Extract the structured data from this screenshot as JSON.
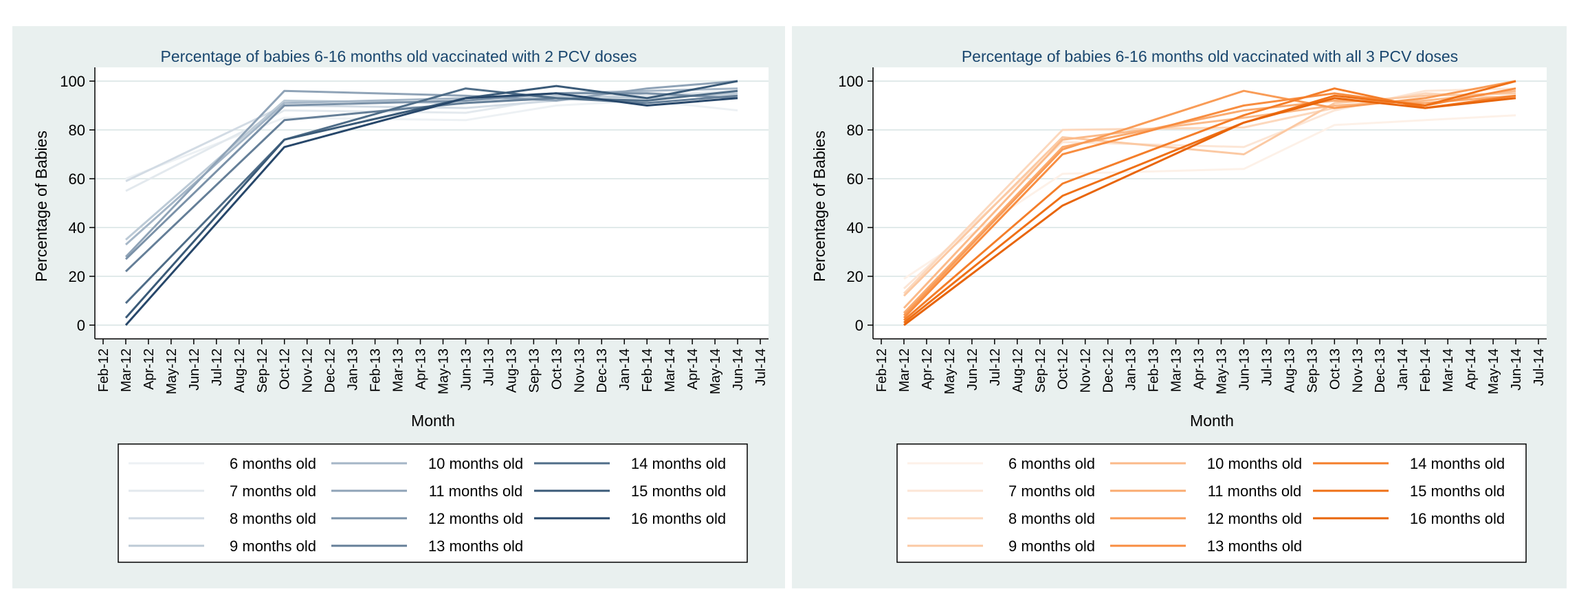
{
  "colors": {
    "panel_bg": "#e9f0ef",
    "plot_bg": "#ffffff",
    "grid": "#e1eaea",
    "text": "#000000",
    "title_text": "#1a476f",
    "legend_border": "#000000"
  },
  "chart_data": [
    {
      "type": "line",
      "title": "Percentage of babies 6-16 months old vaccinated with 2 PCV doses",
      "xlabel": "Month",
      "ylabel": "Percentage of Babies",
      "ylim": [
        0,
        100
      ],
      "yticks": [
        0,
        20,
        40,
        60,
        80,
        100
      ],
      "categories": [
        "Feb-12",
        "Mar-12",
        "Apr-12",
        "May-12",
        "Jun-12",
        "Jul-12",
        "Aug-12",
        "Sep-12",
        "Oct-12",
        "Nov-12",
        "Dec-12",
        "Jan-13",
        "Feb-13",
        "Mar-13",
        "Apr-13",
        "May-13",
        "Jun-13",
        "Jul-13",
        "Aug-13",
        "Sep-13",
        "Oct-13",
        "Nov-13",
        "Dec-13",
        "Jan-14",
        "Feb-14",
        "Mar-14",
        "Apr-14",
        "May-14",
        "Jun-14",
        "Jul-14"
      ],
      "grid": true,
      "legend_position": "bottom",
      "legend_columns": 3,
      "series": [
        {
          "name": "6 months old",
          "color": "#edf1f4",
          "x": [
            "Mar-12",
            "Oct-12",
            "Jun-13",
            "Oct-13",
            "Feb-14",
            "Jun-14"
          ],
          "values": [
            60,
            85,
            84,
            90,
            92,
            88
          ]
        },
        {
          "name": "7 months old",
          "color": "#e3e9ee",
          "x": [
            "Mar-12",
            "Oct-12",
            "Jun-13",
            "Oct-13",
            "Feb-14",
            "Jun-14"
          ],
          "values": [
            55,
            88,
            87,
            93,
            94,
            96
          ]
        },
        {
          "name": "8 months old",
          "color": "#d2dbe4",
          "x": [
            "Mar-12",
            "Oct-12",
            "Jun-13",
            "Oct-13",
            "Feb-14",
            "Jun-14"
          ],
          "values": [
            59,
            90,
            89,
            92,
            95,
            94
          ]
        },
        {
          "name": "9 months old",
          "color": "#bccad6",
          "x": [
            "Mar-12",
            "Oct-12",
            "Jun-13",
            "Oct-13",
            "Feb-14",
            "Jun-14"
          ],
          "values": [
            35,
            92,
            91,
            94,
            93,
            95
          ]
        },
        {
          "name": "10 months old",
          "color": "#a5b6c7",
          "x": [
            "Mar-12",
            "Oct-12",
            "Jun-13",
            "Oct-13",
            "Feb-14",
            "Jun-14"
          ],
          "values": [
            33,
            91,
            93,
            95,
            96,
            97
          ]
        },
        {
          "name": "11 months old",
          "color": "#8fa3b7",
          "x": [
            "Mar-12",
            "Oct-12",
            "Jun-13",
            "Oct-13",
            "Feb-14",
            "Jun-14"
          ],
          "values": [
            28,
            96,
            94,
            92,
            97,
            100
          ]
        },
        {
          "name": "12 months old",
          "color": "#7a91a8",
          "x": [
            "Mar-12",
            "Oct-12",
            "Jun-13",
            "Oct-13",
            "Feb-14",
            "Jun-14"
          ],
          "values": [
            27,
            90,
            92,
            95,
            95,
            93
          ]
        },
        {
          "name": "13 months old",
          "color": "#657f98",
          "x": [
            "Mar-12",
            "Oct-12",
            "Jun-13",
            "Oct-13",
            "Feb-14",
            "Jun-14"
          ],
          "values": [
            22,
            84,
            91,
            93,
            91,
            94
          ]
        },
        {
          "name": "14 months old",
          "color": "#4f6d88",
          "x": [
            "Mar-12",
            "Oct-12",
            "Jun-13",
            "Oct-13",
            "Feb-14",
            "Jun-14"
          ],
          "values": [
            9,
            76,
            97,
            93,
            92,
            96
          ]
        },
        {
          "name": "15 months old",
          "color": "#3a5a78",
          "x": [
            "Mar-12",
            "Oct-12",
            "Jun-13",
            "Oct-13",
            "Feb-14",
            "Jun-14"
          ],
          "values": [
            3,
            76,
            93,
            98,
            93,
            100
          ]
        },
        {
          "name": "16 months old",
          "color": "#27476a",
          "x": [
            "Mar-12",
            "Oct-12",
            "Jun-13",
            "Oct-13",
            "Feb-14",
            "Jun-14"
          ],
          "values": [
            0,
            73,
            93,
            95,
            90,
            93
          ]
        }
      ]
    },
    {
      "type": "line",
      "title": "Percentage of babies 6-16 months old vaccinated with all 3 PCV doses",
      "xlabel": "Month",
      "ylabel": "Percentage of Babies",
      "ylim": [
        0,
        100
      ],
      "yticks": [
        0,
        20,
        40,
        60,
        80,
        100
      ],
      "categories": [
        "Feb-12",
        "Mar-12",
        "Apr-12",
        "May-12",
        "Jun-12",
        "Jul-12",
        "Aug-12",
        "Sep-12",
        "Oct-12",
        "Nov-12",
        "Dec-12",
        "Jan-13",
        "Feb-13",
        "Mar-13",
        "Apr-13",
        "May-13",
        "Jun-13",
        "Jul-13",
        "Aug-13",
        "Sep-13",
        "Oct-13",
        "Nov-13",
        "Dec-13",
        "Jan-14",
        "Feb-14",
        "Mar-14",
        "Apr-14",
        "May-14",
        "Jun-14",
        "Jul-14"
      ],
      "grid": true,
      "legend_position": "bottom",
      "legend_columns": 3,
      "series": [
        {
          "name": "6 months old",
          "color": "#fdf1e8",
          "x": [
            "Mar-12",
            "Oct-12",
            "Jun-13",
            "Oct-13",
            "Feb-14",
            "Jun-14"
          ],
          "values": [
            19,
            62,
            64,
            82,
            84,
            86
          ]
        },
        {
          "name": "7 months old",
          "color": "#fce6d6",
          "x": [
            "Mar-12",
            "Oct-12",
            "Jun-13",
            "Oct-13",
            "Feb-14",
            "Jun-14"
          ],
          "values": [
            15,
            75,
            73,
            88,
            96,
            97
          ]
        },
        {
          "name": "8 months old",
          "color": "#fcd8bd",
          "x": [
            "Mar-12",
            "Oct-12",
            "Jun-13",
            "Oct-13",
            "Feb-14",
            "Jun-14"
          ],
          "values": [
            13,
            80,
            81,
            89,
            95,
            93
          ]
        },
        {
          "name": "9 months old",
          "color": "#fbc9a3",
          "x": [
            "Mar-12",
            "Oct-12",
            "Jun-13",
            "Oct-13",
            "Feb-14",
            "Jun-14"
          ],
          "values": [
            12,
            77,
            70,
            91,
            94,
            95
          ]
        },
        {
          "name": "10 months old",
          "color": "#fbba89",
          "x": [
            "Mar-12",
            "Oct-12",
            "Jun-13",
            "Oct-13",
            "Feb-14",
            "Jun-14"
          ],
          "values": [
            7,
            76,
            85,
            90,
            92,
            96
          ]
        },
        {
          "name": "11 months old",
          "color": "#faab70",
          "x": [
            "Mar-12",
            "Oct-12",
            "Jun-13",
            "Oct-13",
            "Feb-14",
            "Jun-14"
          ],
          "values": [
            5,
            73,
            88,
            92,
            91,
            94
          ]
        },
        {
          "name": "12 months old",
          "color": "#f99c57",
          "x": [
            "Mar-12",
            "Oct-12",
            "Jun-13",
            "Oct-13",
            "Feb-14",
            "Jun-14"
          ],
          "values": [
            4,
            72,
            96,
            89,
            93,
            100
          ]
        },
        {
          "name": "13 months old",
          "color": "#f88d40",
          "x": [
            "Mar-12",
            "Oct-12",
            "Jun-13",
            "Oct-13",
            "Feb-14",
            "Jun-14"
          ],
          "values": [
            3,
            70,
            90,
            95,
            90,
            97
          ]
        },
        {
          "name": "14 months old",
          "color": "#f47e2a",
          "x": [
            "Mar-12",
            "Oct-12",
            "Jun-13",
            "Oct-13",
            "Feb-14",
            "Jun-14"
          ],
          "values": [
            2,
            58,
            86,
            97,
            89,
            94
          ]
        },
        {
          "name": "15 months old",
          "color": "#ef7016",
          "x": [
            "Mar-12",
            "Oct-12",
            "Jun-13",
            "Oct-13",
            "Feb-14",
            "Jun-14"
          ],
          "values": [
            1,
            53,
            83,
            94,
            90,
            100
          ]
        },
        {
          "name": "16 months old",
          "color": "#e8650a",
          "x": [
            "Mar-12",
            "Oct-12",
            "Jun-13",
            "Oct-13",
            "Feb-14",
            "Jun-14"
          ],
          "values": [
            0,
            49,
            83,
            93,
            89,
            93
          ]
        }
      ]
    }
  ]
}
